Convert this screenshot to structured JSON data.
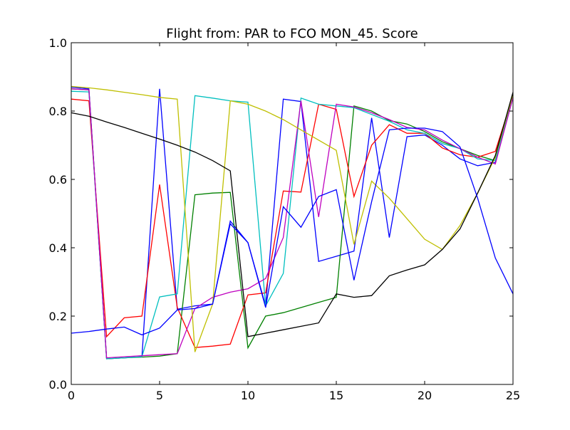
{
  "chart_data": {
    "type": "line",
    "title": "Flight from: PAR to FCO  MON_45. Score",
    "xlabel": "",
    "ylabel": "",
    "xlim": [
      0,
      25
    ],
    "ylim": [
      0.0,
      1.0
    ],
    "x_ticks": [
      0,
      5,
      10,
      15,
      20,
      25
    ],
    "y_ticks": [
      0.0,
      0.2,
      0.4,
      0.6,
      0.8,
      1.0
    ],
    "x_tick_labels": [
      "0",
      "5",
      "10",
      "15",
      "20",
      "25"
    ],
    "y_tick_labels": [
      "0.0",
      "0.2",
      "0.4",
      "0.6",
      "0.8",
      "1.0"
    ],
    "grid": false,
    "legend": "none",
    "x": [
      0,
      1,
      2,
      3,
      4,
      5,
      6,
      7,
      8,
      9,
      10,
      11,
      12,
      13,
      14,
      15,
      16,
      17,
      18,
      19,
      20,
      21,
      22,
      23,
      24,
      25
    ],
    "series": [
      {
        "color": "#0000ff",
        "values": [
          0.87,
          0.865,
          0.075,
          0.078,
          0.081,
          0.865,
          0.22,
          0.23,
          0.235,
          0.478,
          0.415,
          0.23,
          0.835,
          0.828,
          0.36,
          0.375,
          0.39,
          0.78,
          0.43,
          0.725,
          0.73,
          0.7,
          0.66,
          0.64,
          0.65,
          0.84
        ]
      },
      {
        "color": "#008000",
        "values": [
          0.865,
          0.862,
          0.075,
          0.078,
          0.08,
          0.083,
          0.09,
          0.555,
          0.56,
          0.562,
          0.107,
          0.2,
          0.21,
          0.225,
          0.24,
          0.255,
          0.815,
          0.8,
          0.772,
          0.762,
          0.74,
          0.71,
          0.69,
          0.67,
          0.655,
          0.845
        ]
      },
      {
        "color": "#ff0000",
        "values": [
          0.835,
          0.83,
          0.14,
          0.195,
          0.2,
          0.585,
          0.225,
          0.108,
          0.112,
          0.118,
          0.262,
          0.268,
          0.566,
          0.563,
          0.82,
          0.805,
          0.55,
          0.7,
          0.76,
          0.735,
          0.735,
          0.692,
          0.672,
          0.665,
          0.682,
          0.845
        ]
      },
      {
        "color": "#00bfbf",
        "values": [
          0.858,
          0.856,
          0.075,
          0.078,
          0.081,
          0.256,
          0.265,
          0.845,
          0.838,
          0.83,
          0.826,
          0.23,
          0.325,
          0.838,
          0.82,
          0.815,
          0.81,
          0.79,
          0.77,
          0.745,
          0.735,
          0.705,
          0.69,
          0.66,
          0.655,
          0.842
        ]
      },
      {
        "color": "#bf00bf",
        "values": [
          0.865,
          0.862,
          0.078,
          0.081,
          0.084,
          0.087,
          0.09,
          0.222,
          0.255,
          0.27,
          0.28,
          0.31,
          0.43,
          0.83,
          0.49,
          0.82,
          0.812,
          0.795,
          0.775,
          0.752,
          0.745,
          0.715,
          0.69,
          0.665,
          0.645,
          0.84
        ]
      },
      {
        "color": "#bfbf00",
        "values": [
          0.872,
          0.868,
          0.862,
          0.855,
          0.848,
          0.84,
          0.835,
          0.095,
          0.235,
          0.83,
          0.82,
          0.8,
          0.775,
          0.745,
          0.715,
          0.685,
          0.41,
          0.595,
          0.545,
          0.485,
          0.425,
          0.395,
          0.465,
          0.56,
          0.665,
          0.85
        ]
      },
      {
        "color": "#000000",
        "values": [
          0.795,
          0.785,
          0.768,
          0.752,
          0.735,
          0.718,
          0.7,
          0.68,
          0.655,
          0.625,
          0.14,
          0.15,
          0.16,
          0.17,
          0.18,
          0.265,
          0.255,
          0.26,
          0.318,
          0.335,
          0.35,
          0.395,
          0.455,
          0.56,
          0.67,
          0.855
        ]
      },
      {
        "color": "#0000ff",
        "values": [
          0.15,
          0.155,
          0.162,
          0.168,
          0.145,
          0.165,
          0.218,
          0.222,
          0.235,
          0.47,
          0.415,
          0.225,
          0.52,
          0.46,
          0.55,
          0.57,
          0.305,
          0.535,
          0.745,
          0.75,
          0.75,
          0.74,
          0.695,
          0.545,
          0.37,
          0.265
        ]
      }
    ]
  }
}
